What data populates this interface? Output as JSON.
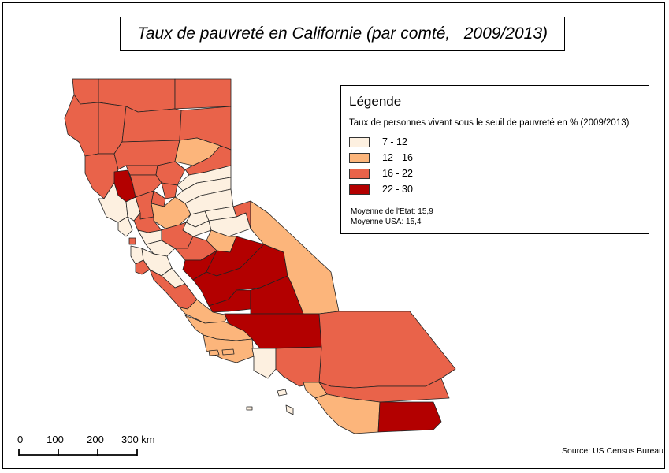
{
  "title": "Taux de pauvreté en Californie (par comté,   2009/2013)",
  "legend": {
    "title": "Légende",
    "subtitle": "Taux de personnes vivant sous le seuil de pauvreté en % (2009/2013)",
    "classes": [
      {
        "label": "7 - 12",
        "color": "#fdf0e0"
      },
      {
        "label": "12 - 16",
        "color": "#fcb57b"
      },
      {
        "label": "16 - 22",
        "color": "#e9634a"
      },
      {
        "label": "22 - 30",
        "color": "#b30000"
      }
    ],
    "state_avg": "Moyenne de l'Etat: 15,9",
    "usa_avg": "Moyenne USA: 15,4"
  },
  "scale": {
    "ticks": [
      "0",
      "100",
      "200",
      "300 km"
    ]
  },
  "source": "Source: US Census Bureau"
}
